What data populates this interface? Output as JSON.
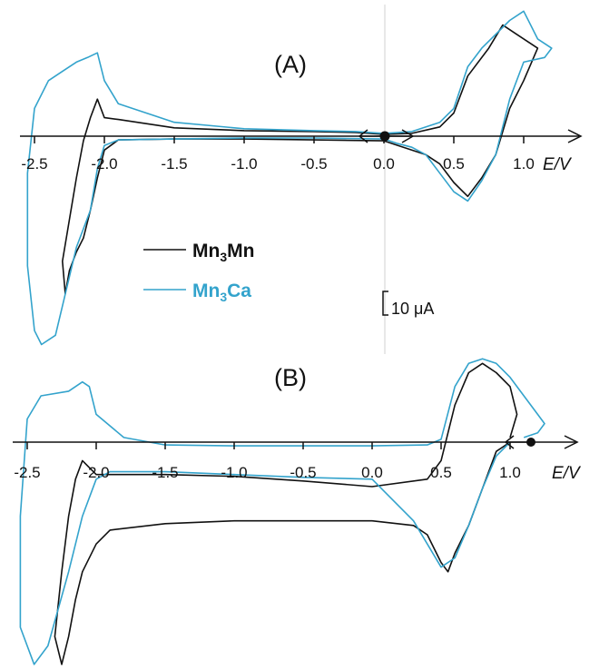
{
  "chart_data": [
    {
      "type": "line",
      "panel_label": "(A)",
      "xlabel": "E/V",
      "xlim": [
        -2.6,
        1.4
      ],
      "x_ticks": [
        "-2.5",
        "-2.0",
        "-1.5",
        "-1.0",
        "-0.5",
        "0.0",
        "0.5",
        "1.0"
      ],
      "start_potential": 0.0,
      "y_scale_bar": "10 μA",
      "series": [
        {
          "name": "Mn3Mn",
          "color": "#111111",
          "points": [
            [
              0.0,
              0.2
            ],
            [
              0.2,
              0.3
            ],
            [
              0.4,
              1.0
            ],
            [
              0.5,
              2.5
            ],
            [
              0.6,
              6.5
            ],
            [
              0.75,
              9.5
            ],
            [
              0.85,
              12.0
            ],
            [
              0.95,
              11.0
            ],
            [
              1.1,
              9.5
            ],
            [
              1.0,
              6.0
            ],
            [
              0.9,
              3.0
            ],
            [
              0.8,
              -2.0
            ],
            [
              0.7,
              -4.5
            ],
            [
              0.6,
              -6.5
            ],
            [
              0.5,
              -5.0
            ],
            [
              0.4,
              -3.0
            ],
            [
              0.3,
              -2.0
            ],
            [
              0.1,
              -1.0
            ],
            [
              0.0,
              -0.5
            ],
            [
              -0.5,
              -0.4
            ],
            [
              -1.0,
              -0.3
            ],
            [
              -1.5,
              -0.3
            ],
            [
              -1.9,
              -0.4
            ],
            [
              -2.0,
              -1.5
            ],
            [
              -2.05,
              -4.5
            ],
            [
              -2.1,
              -8.0
            ],
            [
              -2.15,
              -11.0
            ],
            [
              -2.2,
              -12.5
            ],
            [
              -2.25,
              -14.5
            ],
            [
              -2.28,
              -17.0
            ],
            [
              -2.3,
              -13.5
            ],
            [
              -2.25,
              -9.0
            ],
            [
              -2.2,
              -4.5
            ],
            [
              -2.15,
              -0.5
            ],
            [
              -2.1,
              2.0
            ],
            [
              -2.05,
              4.0
            ],
            [
              -2.0,
              2.0
            ],
            [
              -1.9,
              1.8
            ],
            [
              -1.5,
              0.9
            ],
            [
              -1.0,
              0.6
            ],
            [
              -0.5,
              0.5
            ],
            [
              -0.2,
              0.4
            ],
            [
              0.0,
              0.2
            ]
          ]
        },
        {
          "name": "Mn3Ca",
          "color": "#33a3cc",
          "points": [
            [
              0.0,
              0.3
            ],
            [
              0.2,
              0.5
            ],
            [
              0.4,
              1.5
            ],
            [
              0.5,
              3.0
            ],
            [
              0.6,
              7.5
            ],
            [
              0.7,
              9.5
            ],
            [
              0.8,
              11.0
            ],
            [
              0.9,
              12.5
            ],
            [
              1.0,
              13.5
            ],
            [
              1.1,
              10.5
            ],
            [
              1.2,
              9.5
            ],
            [
              1.15,
              8.5
            ],
            [
              1.0,
              8.0
            ],
            [
              0.9,
              4.0
            ],
            [
              0.8,
              -2.0
            ],
            [
              0.7,
              -4.8
            ],
            [
              0.6,
              -7.0
            ],
            [
              0.5,
              -6.0
            ],
            [
              0.4,
              -4.0
            ],
            [
              0.3,
              -2.0
            ],
            [
              0.2,
              -1.2
            ],
            [
              0.1,
              -0.8
            ],
            [
              0.0,
              -0.3
            ],
            [
              -0.5,
              -0.2
            ],
            [
              -1.0,
              -0.2
            ],
            [
              -1.5,
              -0.3
            ],
            [
              -1.9,
              -0.4
            ],
            [
              -2.0,
              -1.0
            ],
            [
              -2.05,
              -3.5
            ],
            [
              -2.1,
              -8.0
            ],
            [
              -2.2,
              -12.0
            ],
            [
              -2.35,
              -21.5
            ],
            [
              -2.45,
              -22.5
            ],
            [
              -2.5,
              -21.0
            ],
            [
              -2.55,
              -14.0
            ],
            [
              -2.55,
              -4.0
            ],
            [
              -2.5,
              3.0
            ],
            [
              -2.4,
              6.0
            ],
            [
              -2.3,
              7.0
            ],
            [
              -2.2,
              8.0
            ],
            [
              -2.12,
              8.5
            ],
            [
              -2.05,
              9.0
            ],
            [
              -2.0,
              6.0
            ],
            [
              -1.9,
              3.5
            ],
            [
              -1.7,
              2.5
            ],
            [
              -1.5,
              1.5
            ],
            [
              -1.0,
              0.8
            ],
            [
              -0.5,
              0.6
            ],
            [
              -0.2,
              0.5
            ],
            [
              0.0,
              0.3
            ]
          ]
        }
      ],
      "legend": [
        {
          "name": "Mn",
          "sub": "3",
          "name2": "Mn",
          "color": "#111111"
        },
        {
          "name": "Mn",
          "sub": "3",
          "name2": "Ca",
          "color": "#33a3cc"
        }
      ]
    },
    {
      "type": "line",
      "panel_label": "(B)",
      "xlabel": "E/V",
      "xlim": [
        -2.6,
        1.4
      ],
      "x_ticks": [
        "-2.5",
        "-2.0",
        "-1.5",
        "-1.0",
        "-0.5",
        "0.0",
        "0.5",
        "1.0"
      ],
      "start_potential": 1.0,
      "series": [
        {
          "name": "Mn3Mn",
          "color": "#111111",
          "points": [
            [
              1.0,
              0.0
            ],
            [
              0.9,
              -1.0
            ],
            [
              0.8,
              -5.0
            ],
            [
              0.7,
              -9.0
            ],
            [
              0.6,
              -12.0
            ],
            [
              0.55,
              -14.0
            ],
            [
              0.5,
              -13.0
            ],
            [
              0.4,
              -10.0
            ],
            [
              0.3,
              -9.0
            ],
            [
              0.0,
              -8.5
            ],
            [
              -0.5,
              -8.5
            ],
            [
              -1.0,
              -8.5
            ],
            [
              -1.5,
              -8.8
            ],
            [
              -1.9,
              -9.5
            ],
            [
              -2.0,
              -11.0
            ],
            [
              -2.1,
              -14.0
            ],
            [
              -2.15,
              -17.0
            ],
            [
              -2.2,
              -21.0
            ],
            [
              -2.25,
              -24.0
            ],
            [
              -2.3,
              -21.0
            ],
            [
              -2.25,
              -14.0
            ],
            [
              -2.2,
              -8.0
            ],
            [
              -2.15,
              -4.0
            ],
            [
              -2.1,
              -2.0
            ],
            [
              -2.0,
              -3.5
            ],
            [
              -1.9,
              -3.5
            ],
            [
              -1.5,
              -3.5
            ],
            [
              -1.0,
              -3.7
            ],
            [
              -0.5,
              -4.2
            ],
            [
              0.0,
              -4.8
            ],
            [
              0.4,
              -4.0
            ],
            [
              0.5,
              -2.0
            ],
            [
              0.6,
              4.0
            ],
            [
              0.7,
              7.5
            ],
            [
              0.8,
              8.5
            ],
            [
              0.9,
              7.5
            ],
            [
              1.0,
              6.0
            ],
            [
              1.05,
              3.0
            ],
            [
              1.0,
              0.5
            ]
          ]
        },
        {
          "name": "Mn3Ca",
          "color": "#33a3cc",
          "points": [
            [
              1.0,
              0.0
            ],
            [
              0.9,
              -1.5
            ],
            [
              0.8,
              -5.0
            ],
            [
              0.7,
              -9.0
            ],
            [
              0.6,
              -12.5
            ],
            [
              0.5,
              -13.5
            ],
            [
              0.4,
              -11.0
            ],
            [
              0.3,
              -8.5
            ],
            [
              0.0,
              -4.0
            ],
            [
              -0.5,
              -3.8
            ],
            [
              -1.0,
              -3.5
            ],
            [
              -1.5,
              -3.2
            ],
            [
              -1.9,
              -3.2
            ],
            [
              -2.0,
              -4.0
            ],
            [
              -2.1,
              -8.0
            ],
            [
              -2.2,
              -14.0
            ],
            [
              -2.35,
              -22.0
            ],
            [
              -2.45,
              -24.0
            ],
            [
              -2.55,
              -20.0
            ],
            [
              -2.55,
              -8.0
            ],
            [
              -2.5,
              2.5
            ],
            [
              -2.4,
              5.0
            ],
            [
              -2.2,
              5.5
            ],
            [
              -2.1,
              6.5
            ],
            [
              -2.05,
              6.0
            ],
            [
              -2.0,
              3.0
            ],
            [
              -1.8,
              0.5
            ],
            [
              -1.5,
              -0.3
            ],
            [
              -1.0,
              -0.4
            ],
            [
              -0.5,
              -0.4
            ],
            [
              0.0,
              -0.4
            ],
            [
              0.4,
              -0.3
            ],
            [
              0.5,
              0.3
            ],
            [
              0.6,
              6.0
            ],
            [
              0.7,
              8.5
            ],
            [
              0.8,
              9.0
            ],
            [
              0.9,
              8.5
            ],
            [
              1.0,
              7.0
            ],
            [
              1.1,
              5.0
            ],
            [
              1.2,
              3.0
            ],
            [
              1.25,
              2.0
            ],
            [
              1.2,
              1.0
            ],
            [
              1.1,
              0.5
            ]
          ]
        }
      ]
    }
  ]
}
